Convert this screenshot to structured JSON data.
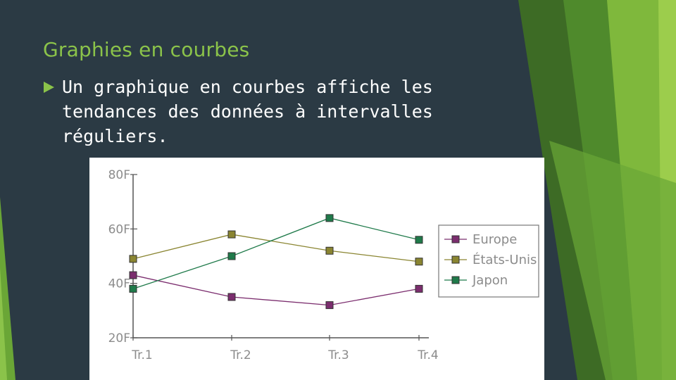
{
  "slide": {
    "title": "Graphies en courbes",
    "bullet": "Un graphique en courbes affiche les tendances des données à intervalles réguliers."
  },
  "colors": {
    "background": "#2b3a44",
    "accent": "#8bc34a"
  },
  "chart_data": {
    "type": "line",
    "categories": [
      "Tr.1",
      "Tr.2",
      "Tr.3",
      "Tr.4"
    ],
    "y_ticks": [
      "20F",
      "40F",
      "60F",
      "80F"
    ],
    "ylim": [
      20,
      80
    ],
    "grid": false,
    "legend_position": "right",
    "series": [
      {
        "name": "Europe",
        "values": [
          43,
          35,
          32,
          38
        ],
        "color": "#7b2d6e"
      },
      {
        "name": "États-Unis",
        "values": [
          49,
          58,
          52,
          48
        ],
        "color": "#8a8531"
      },
      {
        "name": "Japon",
        "values": [
          38,
          50,
          64,
          56
        ],
        "color": "#1f7a4a"
      }
    ]
  }
}
